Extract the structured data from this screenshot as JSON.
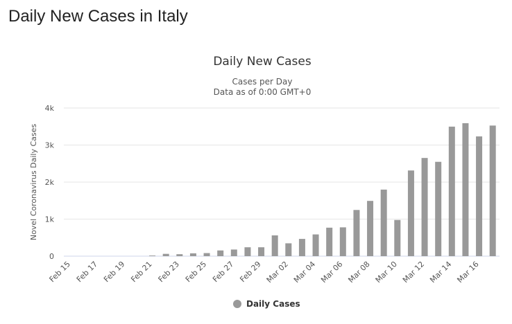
{
  "page": {
    "heading": "Daily New Cases in Italy"
  },
  "chart_data": {
    "type": "bar",
    "title": "Daily New Cases",
    "subtitle_lines": [
      "Cases per Day",
      "Data as of 0:00 GMT+0"
    ],
    "ylabel": "Novel Coronavirus Daily Cases",
    "xlabel": "",
    "ylim": [
      0,
      4000
    ],
    "yticks": [
      0,
      1000,
      2000,
      3000,
      4000
    ],
    "ytick_labels": [
      "0",
      "1k",
      "2k",
      "3k",
      "4k"
    ],
    "grid": true,
    "legend_position": "bottom-center",
    "bar_color": "#999999",
    "categories": [
      "Feb 15",
      "Feb 16",
      "Feb 17",
      "Feb 18",
      "Feb 19",
      "Feb 20",
      "Feb 21",
      "Feb 22",
      "Feb 23",
      "Feb 24",
      "Feb 25",
      "Feb 26",
      "Feb 27",
      "Feb 28",
      "Feb 29",
      "Mar 01",
      "Mar 02",
      "Mar 03",
      "Mar 04",
      "Mar 05",
      "Mar 06",
      "Mar 07",
      "Mar 08",
      "Mar 09",
      "Mar 10",
      "Mar 11",
      "Mar 12",
      "Mar 13",
      "Mar 14",
      "Mar 15",
      "Mar 16",
      "Mar 17"
    ],
    "xtick_labels": [
      "Feb 15",
      "Feb 17",
      "Feb 19",
      "Feb 21",
      "Feb 23",
      "Feb 25",
      "Feb 27",
      "Feb 29",
      "Mar 02",
      "Mar 04",
      "Mar 06",
      "Mar 08",
      "Mar 10",
      "Mar 12",
      "Mar 14",
      "Mar 16"
    ],
    "series": [
      {
        "name": "Daily Cases",
        "values": [
          0,
          0,
          0,
          0,
          0,
          0,
          17,
          62,
          53,
          76,
          83,
          154,
          179,
          240,
          240,
          561,
          347,
          466,
          587,
          769,
          778,
          1247,
          1492,
          1797,
          977,
          2313,
          2651,
          2547,
          3497,
          3590,
          3233,
          3526
        ]
      }
    ]
  }
}
